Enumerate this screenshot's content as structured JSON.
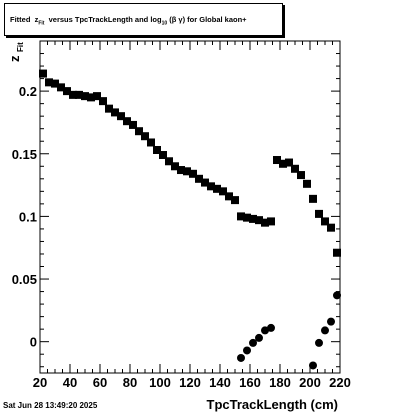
{
  "title": {
    "prefix": "Fitted",
    "z": "z",
    "z_sub": "Fit",
    "mid": "versus TpcTrackLength and log",
    "log_sub": "10",
    "beta_gamma": "(β γ)",
    "suffix": "for Global kaon+"
  },
  "timestamp": "Sat Jun 28 13:49:20 2025",
  "colors": {
    "marker": "#000000",
    "frame": "#000000",
    "background": "#ffffff"
  },
  "chart_data": {
    "type": "scatter",
    "xlabel": "TpcTrackLength (cm)",
    "ylabel": "z",
    "ylabel_sub": "Fit",
    "xlim": [
      20,
      220
    ],
    "ylim": [
      -0.025,
      0.24
    ],
    "x_ticks": [
      20,
      40,
      60,
      80,
      100,
      120,
      140,
      160,
      180,
      200,
      220
    ],
    "y_ticks": [
      0,
      0.05,
      0.1,
      0.15,
      0.2
    ],
    "y_tick_labels": [
      "0",
      "0.05",
      "0.1",
      "0.15",
      "0.2"
    ],
    "grid": false,
    "series": [
      {
        "marker": "square",
        "points": [
          [
            22,
            0.214
          ],
          [
            26,
            0.207
          ],
          [
            30,
            0.206
          ],
          [
            34,
            0.203
          ],
          [
            38,
            0.2
          ],
          [
            42,
            0.197
          ],
          [
            46,
            0.197
          ],
          [
            50,
            0.196
          ],
          [
            54,
            0.195
          ],
          [
            58,
            0.196
          ],
          [
            62,
            0.192
          ],
          [
            66,
            0.186
          ],
          [
            70,
            0.183
          ],
          [
            74,
            0.18
          ],
          [
            78,
            0.176
          ],
          [
            82,
            0.173
          ],
          [
            86,
            0.168
          ],
          [
            90,
            0.164
          ],
          [
            94,
            0.159
          ],
          [
            98,
            0.153
          ],
          [
            102,
            0.149
          ],
          [
            106,
            0.144
          ],
          [
            110,
            0.14
          ],
          [
            114,
            0.137
          ],
          [
            118,
            0.136
          ],
          [
            122,
            0.134
          ],
          [
            126,
            0.13
          ],
          [
            130,
            0.127
          ],
          [
            134,
            0.124
          ],
          [
            138,
            0.122
          ],
          [
            142,
            0.12
          ],
          [
            146,
            0.116
          ],
          [
            150,
            0.113
          ],
          [
            154,
            0.1
          ],
          [
            158,
            0.099
          ],
          [
            162,
            0.098
          ],
          [
            166,
            0.097
          ],
          [
            170,
            0.095
          ],
          [
            174,
            0.096
          ],
          [
            178,
            0.145
          ],
          [
            182,
            0.142
          ],
          [
            186,
            0.143
          ],
          [
            190,
            0.138
          ],
          [
            194,
            0.133
          ],
          [
            198,
            0.126
          ],
          [
            202,
            0.114
          ],
          [
            206,
            0.102
          ],
          [
            210,
            0.096
          ],
          [
            214,
            0.091
          ],
          [
            218,
            0.071
          ]
        ]
      },
      {
        "marker": "circle",
        "points": [
          [
            154,
            -0.013
          ],
          [
            158,
            -0.007
          ],
          [
            162,
            -0.001
          ],
          [
            166,
            0.003
          ],
          [
            170,
            0.009
          ],
          [
            174,
            0.011
          ],
          [
            202,
            -0.019
          ],
          [
            206,
            -0.001
          ],
          [
            210,
            0.009
          ],
          [
            214,
            0.016
          ],
          [
            218,
            0.037
          ]
        ]
      }
    ]
  }
}
